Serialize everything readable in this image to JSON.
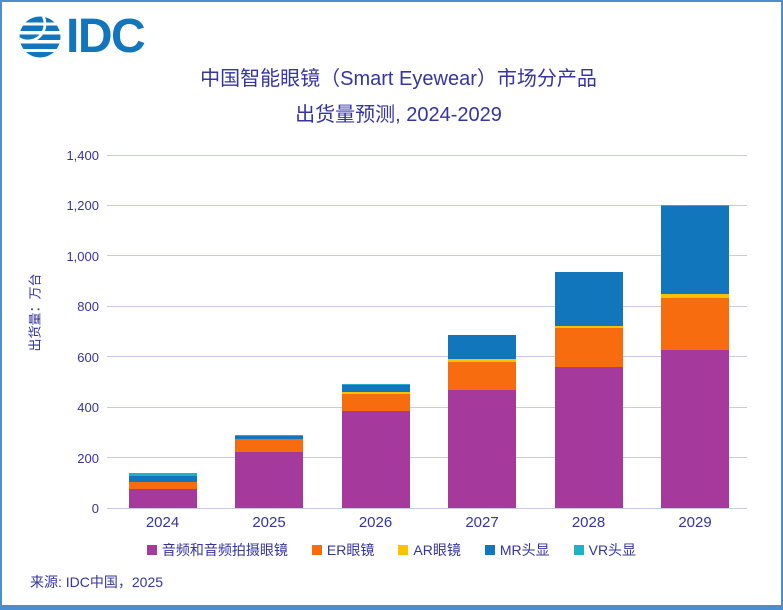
{
  "logo": {
    "text": "IDC"
  },
  "title": {
    "line1": "中国智能眼镜（Smart Eyewear）市场分产品",
    "line2": "出货量预测, 2024-2029"
  },
  "source": "来源: IDC中国，2025",
  "chart_data": {
    "type": "bar",
    "stacked": true,
    "title": "中国智能眼镜（Smart Eyewear）市场分产品 出货量预测, 2024-2029",
    "ylabel": "出货量：万台",
    "categories": [
      "2024",
      "2025",
      "2026",
      "2027",
      "2028",
      "2029"
    ],
    "series": [
      {
        "name": "音频和音频拍摄眼镜",
        "color": "#a53a9c",
        "values": [
          76,
          221,
          384,
          467,
          559,
          625
        ]
      },
      {
        "name": "ER眼镜",
        "color": "#f86c10",
        "values": [
          26,
          52,
          69,
          112,
          155,
          207
        ]
      },
      {
        "name": "AR眼镜",
        "color": "#ffc000",
        "values": [
          2,
          2,
          8,
          13,
          8,
          15
        ]
      },
      {
        "name": "MR头显",
        "color": "#1276bc",
        "values": [
          23,
          10,
          28,
          94,
          213,
          351
        ]
      },
      {
        "name": "VR头显",
        "color": "#23afc8",
        "values": [
          13,
          4,
          4,
          2,
          1,
          2
        ]
      }
    ],
    "ylim": [
      0,
      1400
    ],
    "ytick_step": 200,
    "grid": true,
    "legend_position": "bottom"
  }
}
